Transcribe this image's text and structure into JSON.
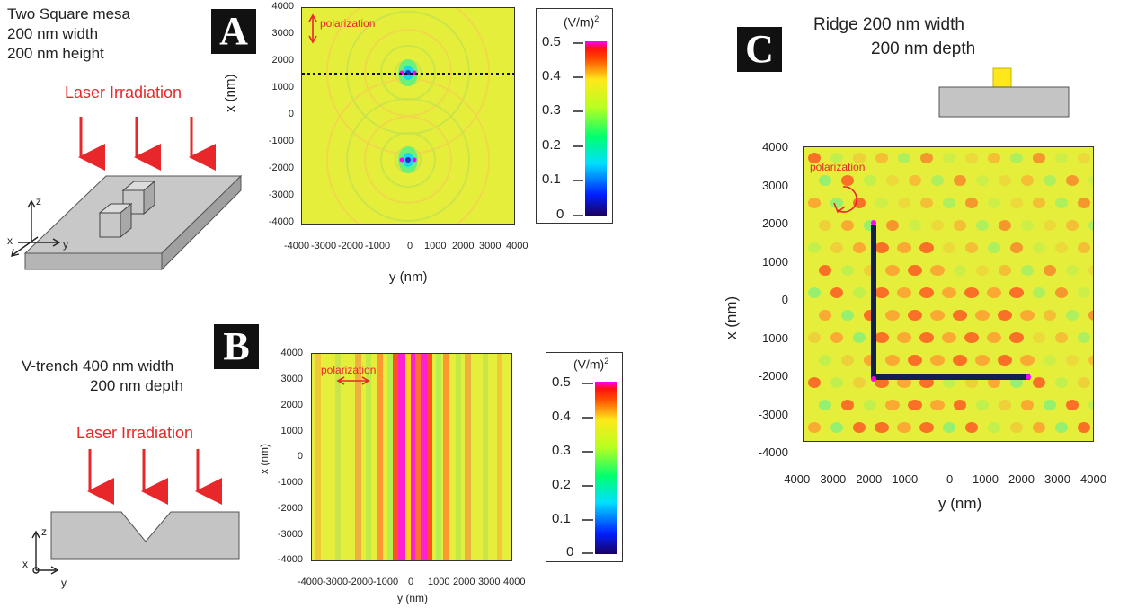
{
  "panel_a": {
    "badge": "A",
    "caption_lines": [
      "Two Square mesa",
      "200 nm width",
      "200 nm height"
    ],
    "laser_label": "Laser Irradiation",
    "axis_letters": {
      "z": "z",
      "x": "x",
      "y": "y"
    },
    "plot": {
      "polarization_label": "polarization",
      "x_axis_label": "y (nm)",
      "y_axis_label": "x (nm)",
      "x_ticks": [
        "-4000",
        "-3000",
        "-2000",
        "-1000",
        "0",
        "1000",
        "2000",
        "3000",
        "4000"
      ],
      "y_ticks": [
        "4000",
        "3000",
        "2000",
        "1000",
        "0",
        "-1000",
        "-2000",
        "-3000",
        "-4000"
      ]
    },
    "colorbar": {
      "unit": "(V/m)",
      "unit_sup": "2",
      "ticks": [
        "0.5",
        "0.4",
        "0.3",
        "0.2",
        "0.1",
        "0"
      ]
    }
  },
  "panel_b": {
    "badge": "B",
    "caption_lines": [
      "V-trench 400 nm width",
      "200 nm depth"
    ],
    "laser_label": "Laser Irradiation",
    "axis_letters": {
      "z": "z",
      "x": "x",
      "y": "y"
    },
    "plot": {
      "polarization_label": "polarization",
      "x_axis_label": "y (nm)",
      "y_axis_label": "x (nm)",
      "x_ticks": [
        "-4000",
        "-3000",
        "-2000",
        "-1000",
        "0",
        "1000",
        "2000",
        "3000",
        "4000"
      ],
      "y_ticks": [
        "4000",
        "3000",
        "2000",
        "1000",
        "0",
        "-1000",
        "-2000",
        "-3000",
        "-4000"
      ]
    },
    "colorbar": {
      "unit": "(V/m)",
      "unit_sup": "2",
      "ticks": [
        "0.5",
        "0.4",
        "0.3",
        "0.2",
        "0.1",
        "0"
      ]
    }
  },
  "panel_c": {
    "badge": "C",
    "caption_lines": [
      "Ridge 200 nm width",
      "200 nm depth"
    ],
    "plot": {
      "polarization_label": "polarization",
      "x_axis_label": "y (nm)",
      "y_axis_label": "x (nm)",
      "x_ticks": [
        "-4000",
        "-3000",
        "-2000",
        "-1000",
        "0",
        "1000",
        "2000",
        "3000",
        "4000"
      ],
      "y_ticks": [
        "4000",
        "3000",
        "2000",
        "1000",
        "0",
        "-1000",
        "-2000",
        "-3000",
        "-4000"
      ]
    }
  },
  "colors": {
    "field_bg": "#e6ee3c",
    "laser_arrow": "#e8272a",
    "substrate": "#c4c4c4",
    "ridge": "#ffe81a",
    "ridge_line": "#12204f"
  }
}
